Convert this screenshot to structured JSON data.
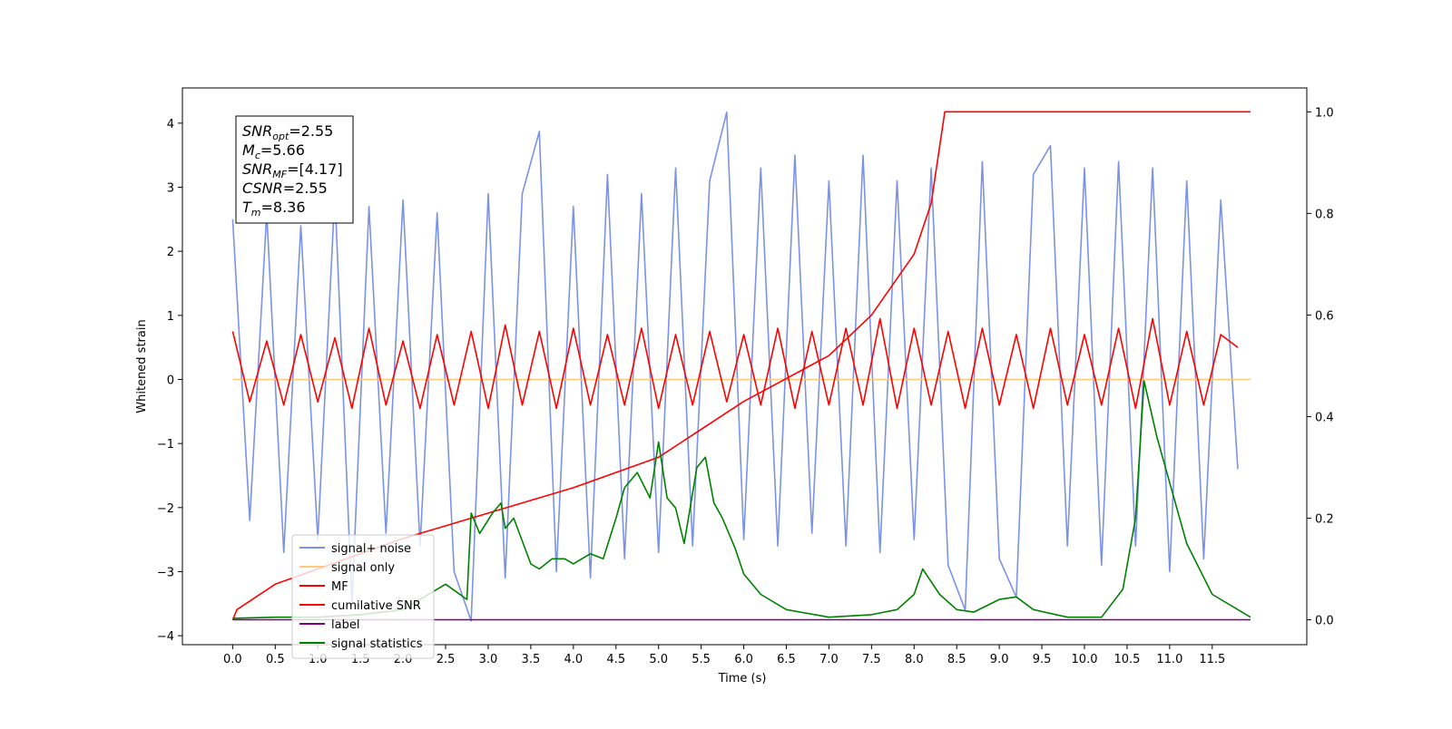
{
  "chart_data": {
    "type": "line",
    "xlabel": "Time (s)",
    "ylabel": "Whitened strain",
    "xlim": [
      -0.59,
      12.61
    ],
    "ylim": [
      -4.14,
      4.55
    ],
    "y2lim": [
      -0.049,
      1.047
    ],
    "xticks": [
      {
        "value": 0,
        "label": "0.0"
      },
      0.5,
      {
        "value": 1,
        "label": "1.0"
      },
      1.5,
      {
        "value": 2,
        "label": "2.0"
      },
      2.5,
      {
        "value": 3,
        "label": "3.0"
      },
      3.5,
      {
        "value": 4,
        "label": "4.0"
      },
      4.5,
      {
        "value": 5,
        "label": "5.0"
      },
      5.5,
      {
        "value": 6,
        "label": "6.0"
      },
      6.5,
      {
        "value": 7,
        "label": "7.0"
      },
      7.5,
      {
        "value": 8,
        "label": "8.0"
      },
      8.5,
      {
        "value": 9,
        "label": "9.0"
      },
      9.5,
      {
        "value": 10,
        "label": "10.0"
      },
      10.5,
      {
        "value": 11,
        "label": "11.0"
      },
      11.5
    ],
    "yticks": [
      {
        "value": -4,
        "label": "−4"
      },
      {
        "value": -3,
        "label": "−3"
      },
      {
        "value": -2,
        "label": "−2"
      },
      {
        "value": -1,
        "label": "−1"
      },
      0,
      1,
      2,
      3,
      4
    ],
    "y2ticks": [
      {
        "value": 0,
        "label": "0.0"
      },
      0.2,
      0.4,
      0.6,
      0.8,
      {
        "value": 1,
        "label": "1.0"
      }
    ],
    "annotations": [
      {
        "symbol": "SNR",
        "subscript": "opt",
        "text": "=2.55"
      },
      {
        "symbol": "M",
        "subscript": "c",
        "text": "=5.66"
      },
      {
        "symbol": "SNR",
        "subscript": "MF",
        "text": "=[4.17]"
      },
      {
        "symbol": "CSNR",
        "subscript": "",
        "text": "=2.55"
      },
      {
        "symbol": "T",
        "subscript": "m",
        "text": "=8.36"
      }
    ],
    "legend": "lower left",
    "series": [
      {
        "name": "signal+ noise",
        "color": "#7b93e6",
        "x": [
          0,
          0.2,
          0.4,
          0.6,
          0.8,
          1,
          1.2,
          1.4,
          1.6,
          1.8,
          2,
          2.2,
          2.4,
          2.6,
          2.8,
          3,
          3.2,
          3.4,
          3.6,
          3.8,
          4,
          4.2,
          4.4,
          4.6,
          4.8,
          5,
          5.2,
          5.4,
          5.6,
          5.8,
          6,
          6.2,
          6.4,
          6.6,
          6.8,
          7,
          7.2,
          7.4,
          7.6,
          7.8,
          8,
          8.2,
          8.4,
          8.6,
          8.8,
          9,
          9.2,
          9.4,
          9.6,
          9.8,
          10,
          10.2,
          10.4,
          10.6,
          10.8,
          11,
          11.2,
          11.4,
          11.6,
          11.8
        ],
        "values": [
          2.5,
          -2.2,
          2.6,
          -2.7,
          2.4,
          -2.5,
          2.9,
          -3.5,
          2.7,
          -2.4,
          2.8,
          -2.6,
          2.6,
          -3.0,
          -3.77,
          2.9,
          -3.1,
          2.9,
          3.87,
          -3.0,
          2.7,
          -3.1,
          3.2,
          -2.8,
          2.9,
          -2.7,
          3.3,
          -2.6,
          3.1,
          4.17,
          -2.5,
          3.3,
          -2.6,
          3.5,
          -2.4,
          3.1,
          -2.6,
          3.5,
          -2.7,
          3.1,
          -2.5,
          3.3,
          -2.9,
          -3.6,
          3.4,
          -2.8,
          -3.4,
          3.2,
          3.65,
          -2.6,
          3.3,
          -2.9,
          3.4,
          -2.6,
          3.3,
          -3.0,
          3.1,
          -2.8,
          2.8,
          -1.4
        ]
      },
      {
        "name": "signal only",
        "color": "#ffc87a",
        "x": [
          0,
          11.95
        ],
        "values": [
          0,
          0
        ]
      },
      {
        "name": "MF",
        "color": "#ff0000",
        "x": [
          0,
          0.2,
          0.4,
          0.6,
          0.8,
          1,
          1.2,
          1.4,
          1.6,
          1.8,
          2,
          2.2,
          2.4,
          2.6,
          2.8,
          3,
          3.2,
          3.4,
          3.6,
          3.8,
          4,
          4.2,
          4.4,
          4.6,
          4.8,
          5,
          5.2,
          5.4,
          5.6,
          5.8,
          6,
          6.2,
          6.4,
          6.6,
          6.8,
          7,
          7.2,
          7.4,
          7.6,
          7.8,
          8,
          8.2,
          8.4,
          8.6,
          8.8,
          9,
          9.2,
          9.4,
          9.6,
          9.8,
          10,
          10.2,
          10.4,
          10.6,
          10.8,
          11,
          11.2,
          11.4,
          11.6,
          11.8
        ],
        "values": [
          0.75,
          -0.35,
          0.6,
          -0.4,
          0.7,
          -0.35,
          0.65,
          -0.45,
          0.8,
          -0.4,
          0.6,
          -0.45,
          0.7,
          -0.4,
          0.75,
          -0.45,
          0.85,
          -0.4,
          0.75,
          -0.45,
          0.8,
          -0.4,
          0.7,
          -0.4,
          0.8,
          -0.45,
          0.7,
          -0.4,
          0.75,
          -0.35,
          0.7,
          -0.4,
          0.8,
          -0.45,
          0.75,
          -0.4,
          0.8,
          -0.4,
          0.95,
          -0.45,
          0.8,
          -0.4,
          0.75,
          -0.45,
          0.8,
          -0.4,
          0.7,
          -0.45,
          0.8,
          -0.4,
          0.7,
          -0.4,
          0.8,
          -0.45,
          0.95,
          -0.4,
          0.75,
          -0.4,
          0.7,
          0.5
        ]
      },
      {
        "name": "cumilative SNR",
        "color": "#ff0000",
        "axis": "y2",
        "x": [
          0,
          0.05,
          0.5,
          1,
          2,
          3,
          4,
          5,
          6,
          7,
          7.5,
          8,
          8.2,
          8.36,
          11.95
        ],
        "values": [
          0,
          0.02,
          0.07,
          0.1,
          0.16,
          0.21,
          0.26,
          0.32,
          0.43,
          0.52,
          0.6,
          0.72,
          0.82,
          1,
          1
        ]
      },
      {
        "name": "label",
        "color": "#800080",
        "axis": "y2",
        "x": [
          0,
          11.95
        ],
        "values": [
          0,
          0
        ]
      },
      {
        "name": "signal statistics",
        "color": "#008000",
        "axis": "y2",
        "x": [
          0,
          0.5,
          1,
          1.5,
          2,
          2.5,
          2.75,
          2.8,
          2.9,
          3.05,
          3.15,
          3.2,
          3.3,
          3.5,
          3.6,
          3.75,
          3.9,
          4,
          4.2,
          4.35,
          4.5,
          4.6,
          4.75,
          4.9,
          5,
          5.1,
          5.2,
          5.3,
          5.45,
          5.55,
          5.65,
          5.75,
          5.9,
          6,
          6.2,
          6.5,
          7,
          7.5,
          7.8,
          8,
          8.1,
          8.3,
          8.5,
          8.7,
          9,
          9.2,
          9.4,
          9.8,
          10.2,
          10.45,
          10.6,
          10.7,
          10.85,
          11,
          11.2,
          11.5,
          11.95
        ],
        "values": [
          0.003,
          0.005,
          0.005,
          0.01,
          0.02,
          0.07,
          0.04,
          0.21,
          0.17,
          0.21,
          0.23,
          0.18,
          0.2,
          0.11,
          0.1,
          0.12,
          0.12,
          0.11,
          0.13,
          0.12,
          0.2,
          0.26,
          0.29,
          0.24,
          0.35,
          0.24,
          0.22,
          0.15,
          0.3,
          0.32,
          0.23,
          0.2,
          0.14,
          0.09,
          0.05,
          0.02,
          0.005,
          0.01,
          0.02,
          0.05,
          0.1,
          0.05,
          0.02,
          0.015,
          0.04,
          0.045,
          0.02,
          0.005,
          0.005,
          0.06,
          0.2,
          0.47,
          0.36,
          0.27,
          0.15,
          0.05,
          0.005
        ]
      }
    ]
  }
}
